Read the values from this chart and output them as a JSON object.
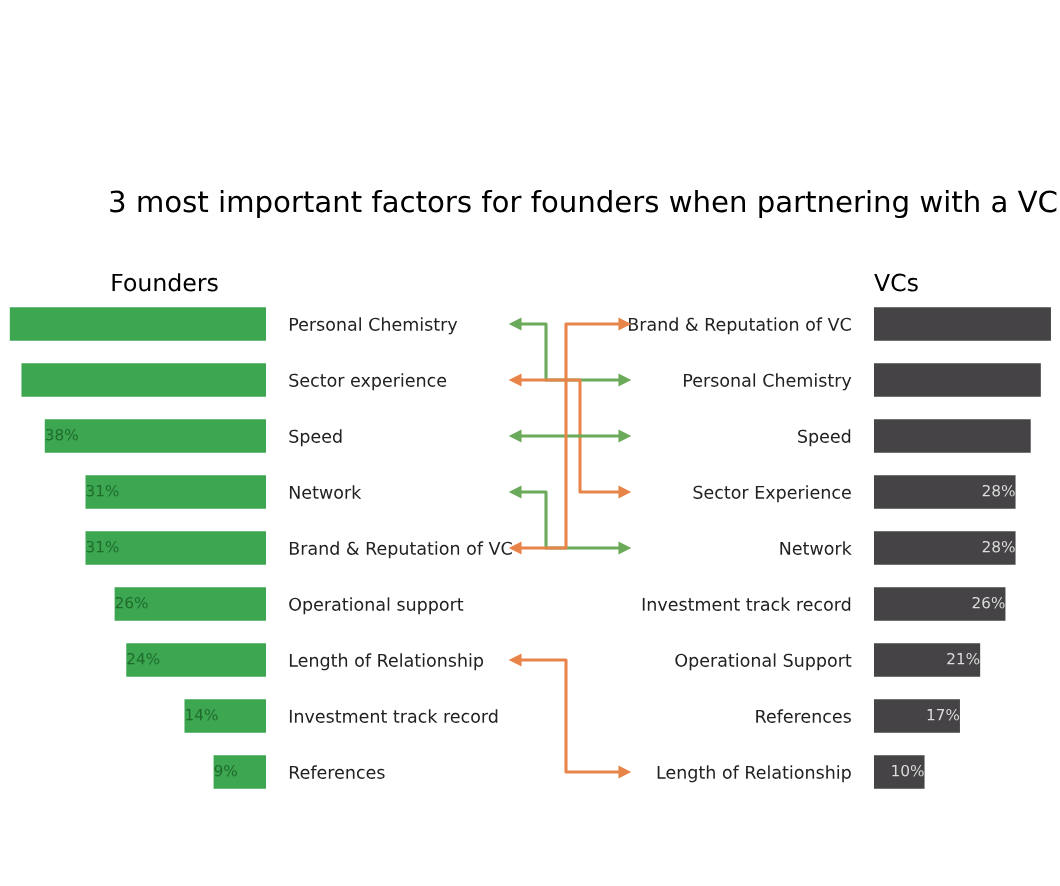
{
  "chart_data": [
    {
      "type": "bar",
      "orientation": "horizontal",
      "title": "Founders",
      "annotations": [
        "3 most important factors for founders when partnering with a VC"
      ],
      "categories": [
        "Personal Chemistry",
        "Sector experience",
        "Speed",
        "Network",
        "Brand & Reputation of VC",
        "Operational support",
        "Length of Relationship",
        "Investment track record",
        "References"
      ],
      "values": [
        44,
        42,
        38,
        31,
        31,
        26,
        24,
        14,
        9
      ],
      "value_labels": [
        null,
        null,
        "38%",
        "31%",
        "31%",
        "26%",
        "24%",
        "14%",
        "9%"
      ],
      "color": "#3ca651",
      "xlim": [
        45,
        0
      ],
      "tick_labels": "y",
      "grid": false,
      "legend": false
    },
    {
      "type": "bar",
      "orientation": "horizontal",
      "title": "VCs",
      "categories": [
        "Brand & Reputation of VC",
        "Personal Chemistry",
        "Speed",
        "Sector Experience",
        "Network",
        "Investment track record",
        "Operational Support",
        "References",
        "Length of Relationship"
      ],
      "values": [
        35,
        33,
        31,
        28,
        28,
        26,
        21,
        17,
        10
      ],
      "value_labels": [
        null,
        null,
        null,
        "28%",
        "28%",
        "26%",
        "21%",
        "17%",
        "10%"
      ],
      "color": "#454345",
      "xlim": [
        0,
        36
      ],
      "tick_labels": "y",
      "grid": false,
      "legend": false
    }
  ]
}
